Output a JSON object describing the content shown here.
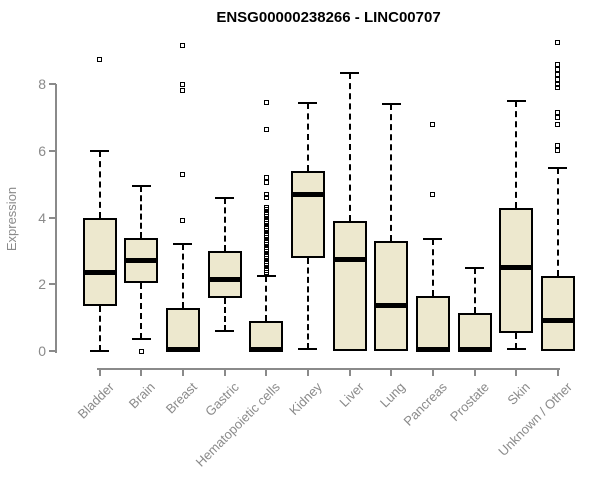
{
  "title": "ENSG00000238266 - LINC00707",
  "chart_data": {
    "type": "boxplot",
    "title": "ENSG00000238266 - LINC00707",
    "ylabel": "Expression",
    "xlabel": "",
    "ylim": [
      0,
      9.4
    ],
    "yticks": [
      0,
      2,
      4,
      6,
      8
    ],
    "grid": false,
    "legend": "none",
    "outlier_marker": "open-square",
    "axis_color": "#8a8a8a",
    "tick_label_color": "#8a8a8a",
    "box_fill_color": "#EDE8CE",
    "box_border_color": "#000000",
    "median_color": "#000000",
    "categories": [
      "Bladder",
      "Brain",
      "Breast",
      "Gastric",
      "Hematopoietic cells",
      "Kidney",
      "Liver",
      "Lung",
      "Pancreas",
      "Prostate",
      "Skin",
      "Unknown / Other"
    ],
    "series": [
      {
        "category": "Bladder",
        "whisker_low": 0,
        "q1": 1.35,
        "median": 2.35,
        "q3": 4.0,
        "whisker_high": 6.0,
        "outliers": [
          8.75
        ]
      },
      {
        "category": "Brain",
        "whisker_low": 0.35,
        "q1": 2.05,
        "median": 2.7,
        "q3": 3.4,
        "whisker_high": 4.95,
        "outliers": [
          0
        ]
      },
      {
        "category": "Breast",
        "whisker_low": 0,
        "q1": 0,
        "median": 0.05,
        "q3": 1.3,
        "whisker_high": 3.2,
        "outliers": [
          9.15,
          8.0,
          7.8,
          5.3,
          3.9
        ]
      },
      {
        "category": "Gastric",
        "whisker_low": 0.6,
        "q1": 1.6,
        "median": 2.15,
        "q3": 3.0,
        "whisker_high": 4.6,
        "outliers": []
      },
      {
        "category": "Hematopoietic cells",
        "whisker_low": 0,
        "q1": 0,
        "median": 0.05,
        "q3": 0.9,
        "whisker_high": 2.25,
        "outliers": [
          7.45,
          6.65,
          5.2,
          5.05,
          4.7,
          4.6,
          4.3,
          4.23,
          4.16,
          4.09,
          4.02,
          3.95,
          3.88,
          3.81,
          3.74,
          3.67,
          3.6,
          3.53,
          3.46,
          3.39,
          3.32,
          3.25,
          3.18,
          3.11,
          3.04,
          2.97,
          2.9,
          2.83,
          2.76,
          2.69,
          2.62,
          2.55,
          2.48,
          2.41,
          2.34,
          2.3
        ]
      },
      {
        "category": "Kidney",
        "whisker_low": 0.05,
        "q1": 2.8,
        "median": 4.7,
        "q3": 5.4,
        "whisker_high": 7.45,
        "outliers": []
      },
      {
        "category": "Liver",
        "whisker_low": 0,
        "q1": 0,
        "median": 2.75,
        "q3": 3.9,
        "whisker_high": 8.35,
        "outliers": []
      },
      {
        "category": "Lung",
        "whisker_low": 0,
        "q1": 0,
        "median": 1.35,
        "q3": 3.3,
        "whisker_high": 7.4,
        "outliers": []
      },
      {
        "category": "Pancreas",
        "whisker_low": 0,
        "q1": 0,
        "median": 0.05,
        "q3": 1.65,
        "whisker_high": 3.35,
        "outliers": [
          6.8,
          4.7
        ]
      },
      {
        "category": "Prostate",
        "whisker_low": 0,
        "q1": 0,
        "median": 0.05,
        "q3": 1.15,
        "whisker_high": 2.5,
        "outliers": []
      },
      {
        "category": "Skin",
        "whisker_low": 0.05,
        "q1": 0.55,
        "median": 2.5,
        "q3": 4.3,
        "whisker_high": 7.5,
        "outliers": []
      },
      {
        "category": "Unknown / Other",
        "whisker_low": 0,
        "q1": 0,
        "median": 0.9,
        "q3": 2.25,
        "whisker_high": 5.5,
        "outliers": [
          9.25,
          8.6,
          8.45,
          8.3,
          8.15,
          8.0,
          7.9,
          7.15,
          7.0,
          6.8,
          6.15,
          6.0
        ]
      }
    ]
  }
}
